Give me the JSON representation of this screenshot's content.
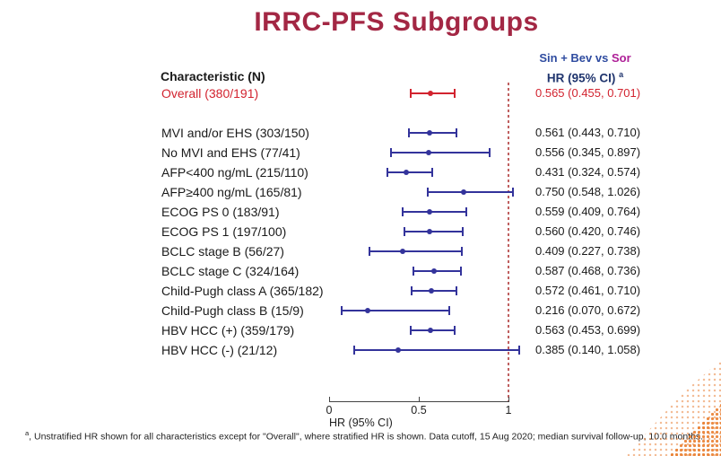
{
  "title": "IRRC-PFS Subgroups",
  "header": {
    "comparison_part1": "Sin + Bev vs",
    "comparison_part2": "Sor",
    "hr_header": "HR (95% CI)",
    "hr_header_sup": "a"
  },
  "characteristic_header": "Characteristic (N)",
  "footnote": {
    "sup": "a",
    "text": ", Unstratified HR shown for all characteristics except for \"Overall\", where stratified HR is shown. Data cutoff, 15 Aug 2020; median survival follow-up, 10.0 months."
  },
  "colors": {
    "title": "#A32744",
    "highlight_red": "#D2232F",
    "bar_navy": "#33339B",
    "header_blue": "#2F4CA0",
    "header_magenta": "#AE1F97",
    "hr_header_navy": "#20356E",
    "text_black": "#1a1a1a",
    "dotted_line": "#C06060",
    "decoration_orange": "#E87722"
  },
  "chart_data": {
    "type": "forest",
    "xlabel": "HR (95% CI)",
    "x_ticks": [
      0,
      0.5,
      1
    ],
    "x_tick_labels": [
      "0",
      "0.5",
      "1"
    ],
    "xlim": [
      0,
      1.1
    ],
    "reference_line": 1,
    "rows": [
      {
        "label": "Overall (380/191)",
        "hr": 0.565,
        "lo": 0.455,
        "hi": 0.701,
        "hr_text": "0.565 (0.455, 0.701)",
        "highlight": true
      },
      {
        "label": "MVI and/or EHS (303/150)",
        "hr": 0.561,
        "lo": 0.443,
        "hi": 0.71,
        "hr_text": "0.561 (0.443, 0.710)",
        "highlight": false
      },
      {
        "label": "No MVI and EHS (77/41)",
        "hr": 0.556,
        "lo": 0.345,
        "hi": 0.897,
        "hr_text": "0.556 (0.345, 0.897)",
        "highlight": false
      },
      {
        "label": "AFP<400 ng/mL (215/110)",
        "hr": 0.431,
        "lo": 0.324,
        "hi": 0.574,
        "hr_text": "0.431 (0.324, 0.574)",
        "highlight": false
      },
      {
        "label": "AFP≥400 ng/mL (165/81)",
        "hr": 0.75,
        "lo": 0.548,
        "hi": 1.026,
        "hr_text": "0.750 (0.548, 1.026)",
        "highlight": false
      },
      {
        "label": "ECOG PS 0 (183/91)",
        "hr": 0.559,
        "lo": 0.409,
        "hi": 0.764,
        "hr_text": "0.559 (0.409, 0.764)",
        "highlight": false
      },
      {
        "label": "ECOG PS 1 (197/100)",
        "hr": 0.56,
        "lo": 0.42,
        "hi": 0.746,
        "hr_text": "0.560 (0.420, 0.746)",
        "highlight": false
      },
      {
        "label": "BCLC stage B (56/27)",
        "hr": 0.409,
        "lo": 0.227,
        "hi": 0.738,
        "hr_text": "0.409 (0.227, 0.738)",
        "highlight": false
      },
      {
        "label": "BCLC stage C (324/164)",
        "hr": 0.587,
        "lo": 0.468,
        "hi": 0.736,
        "hr_text": "0.587 (0.468, 0.736)",
        "highlight": false
      },
      {
        "label": "Child-Pugh class A (365/182)",
        "hr": 0.572,
        "lo": 0.461,
        "hi": 0.71,
        "hr_text": "0.572 (0.461, 0.710)",
        "highlight": false
      },
      {
        "label": "Child-Pugh class B (15/9)",
        "hr": 0.216,
        "lo": 0.07,
        "hi": 0.672,
        "hr_text": "0.216 (0.070, 0.672)",
        "highlight": false
      },
      {
        "label": "HBV HCC (+) (359/179)",
        "hr": 0.563,
        "lo": 0.453,
        "hi": 0.699,
        "hr_text": "0.563 (0.453, 0.699)",
        "highlight": false
      },
      {
        "label": "HBV HCC (-) (21/12)",
        "hr": 0.385,
        "lo": 0.14,
        "hi": 1.058,
        "hr_text": "0.385 (0.140, 1.058)",
        "highlight": false
      }
    ]
  }
}
